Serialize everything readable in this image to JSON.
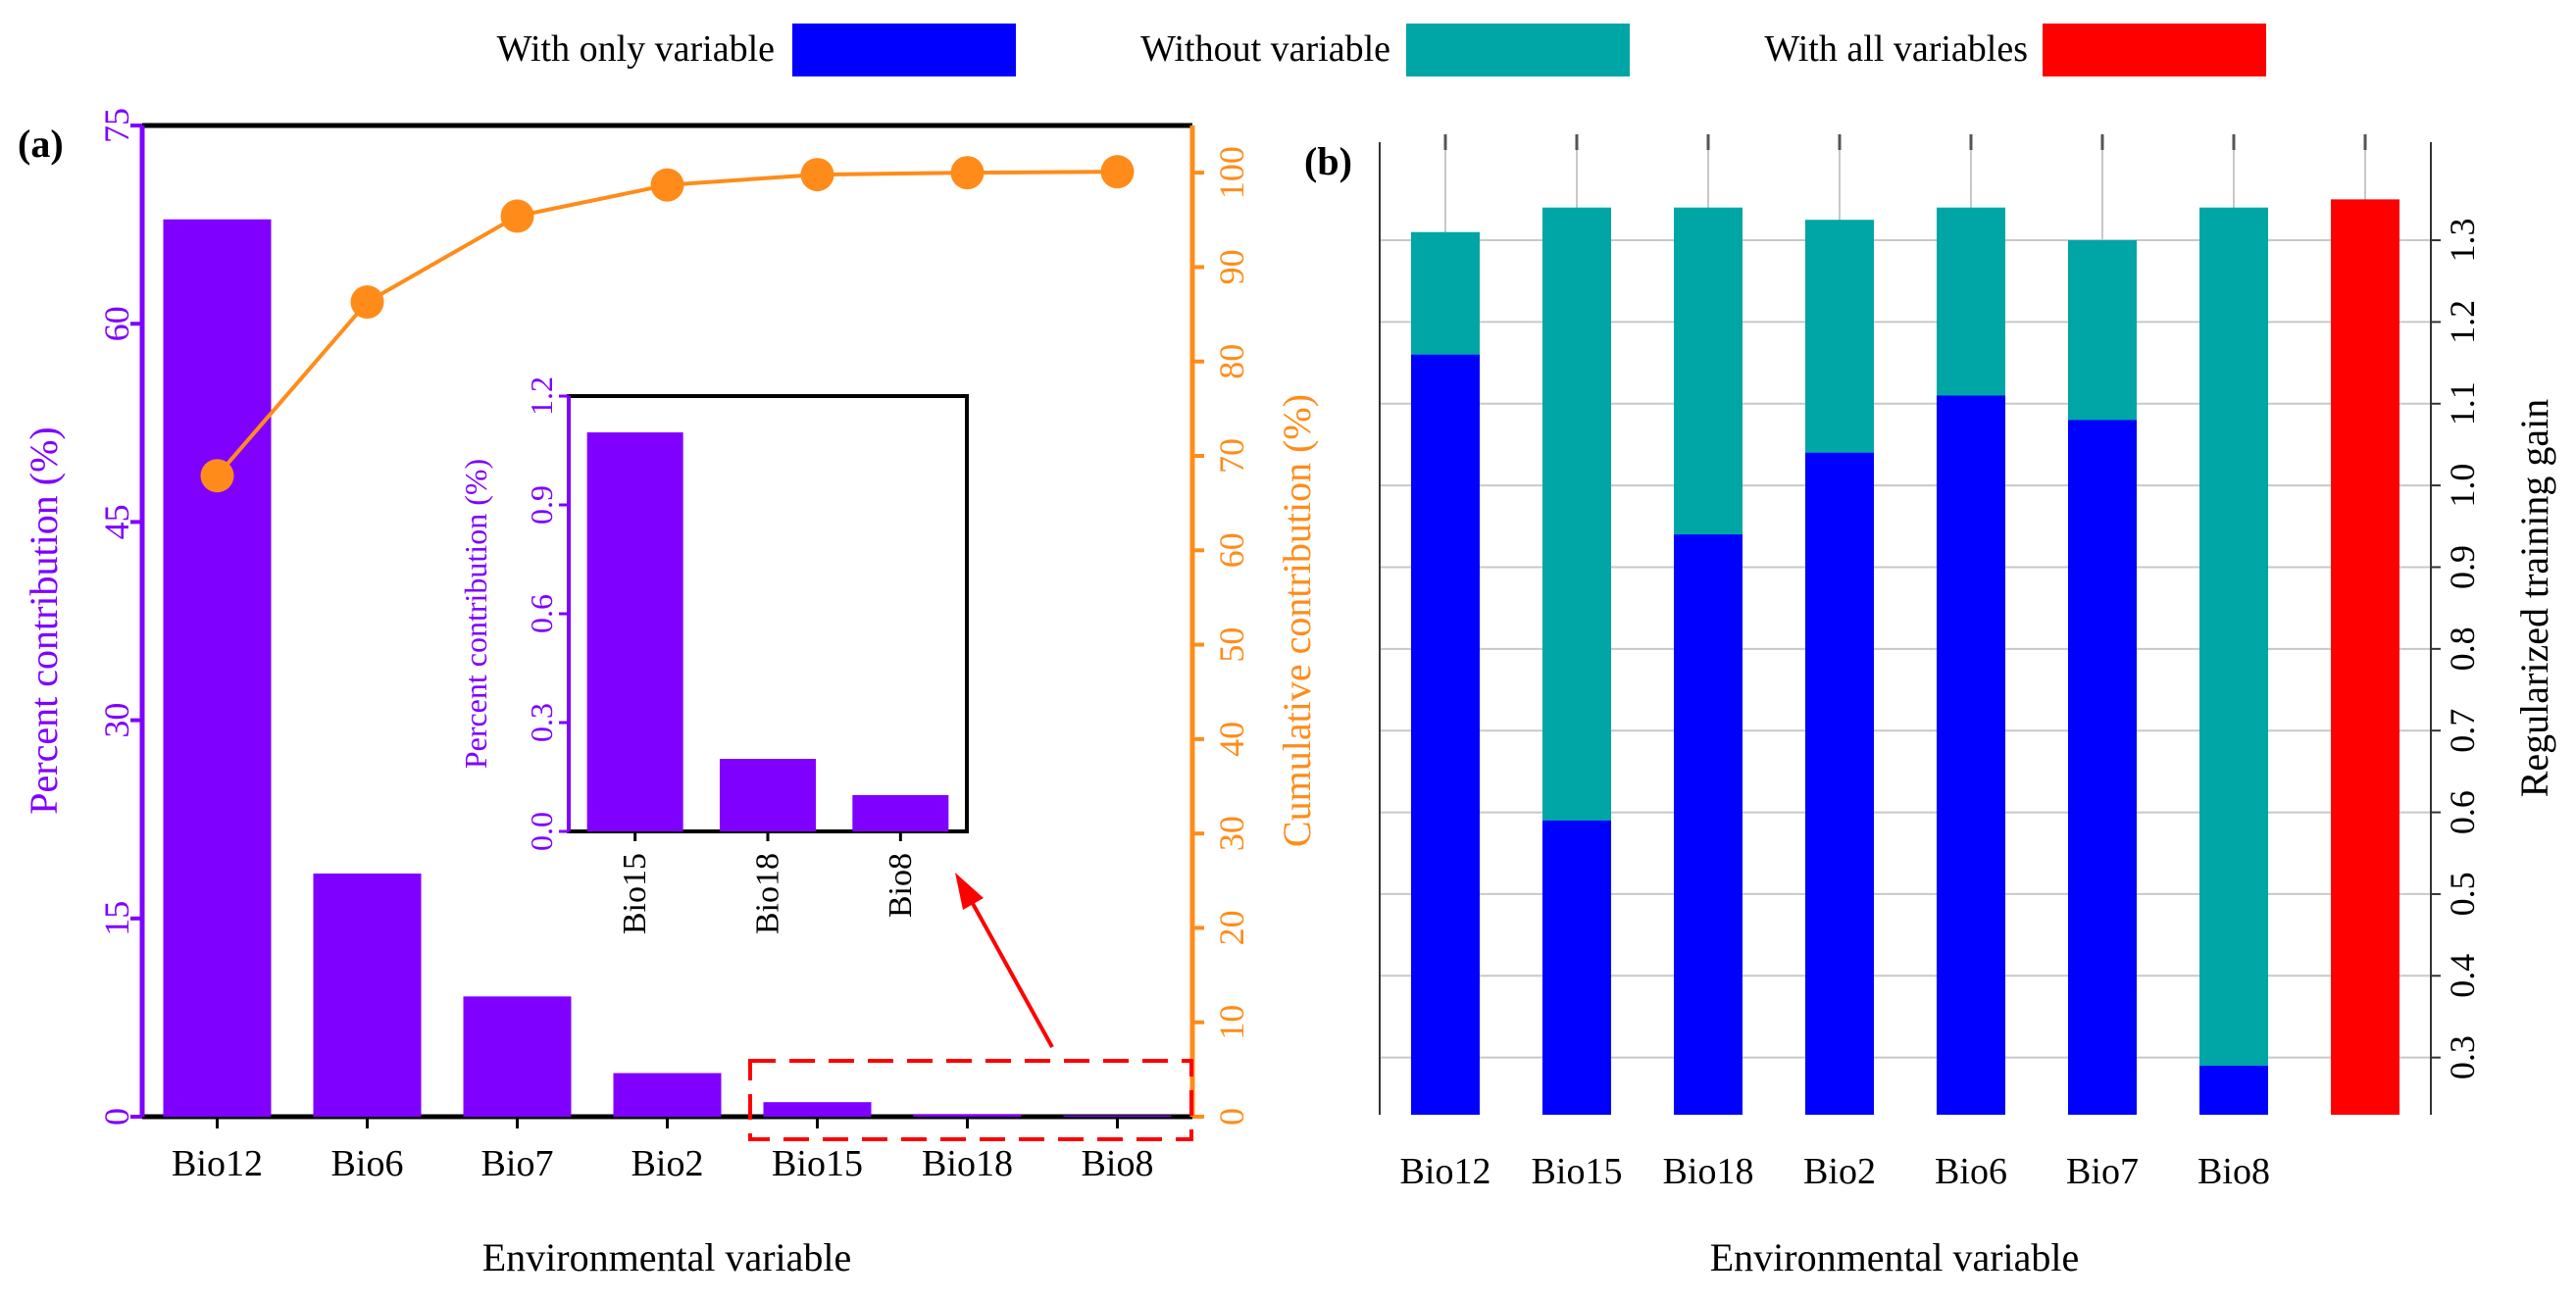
{
  "legend": {
    "items": [
      {
        "label": "With only variable",
        "color": "#0000ff"
      },
      {
        "label": "Without variable",
        "color": "#00a6a6"
      },
      {
        "label": "With all variables",
        "color": "#ff0000"
      }
    ]
  },
  "colors": {
    "bar_purple": "#8000ff",
    "cumulative_orange": "#ff8c1a",
    "only_blue": "#0000ff",
    "without_teal": "#00a6a6",
    "all_red": "#ff0000",
    "callout_red": "#ff0000"
  },
  "chart_data": [
    {
      "panel": "(a)",
      "type": "bar",
      "categories": [
        "Bio12",
        "Bio6",
        "Bio7",
        "Bio2",
        "Bio15",
        "Bio18",
        "Bio8"
      ],
      "series": [
        {
          "name": "Percent contribution (%)",
          "type": "bar",
          "axis": "left",
          "values": [
            67.9,
            18.4,
            9.1,
            3.3,
            1.1,
            0.2,
            0.1
          ]
        },
        {
          "name": "Cumulative contribution (%)",
          "type": "line",
          "axis": "right",
          "values": [
            67.9,
            86.3,
            95.4,
            98.7,
            99.8,
            100.0,
            100.1
          ]
        }
      ],
      "xlabel": "Environmental variable",
      "ylabel": "Percent contribution (%)",
      "ylabel_right": "Cumulative contribution (%)",
      "ylim": [
        0,
        75
      ],
      "ylim_right": [
        0,
        105
      ],
      "yticks": [
        0,
        15,
        30,
        45,
        60,
        75
      ],
      "yticks_right": [
        0,
        10,
        20,
        30,
        40,
        50,
        60,
        70,
        80,
        90,
        100
      ],
      "inset": {
        "type": "bar",
        "categories": [
          "Bio15",
          "Bio18",
          "Bio8"
        ],
        "values": [
          1.1,
          0.2,
          0.1
        ],
        "ylabel": "Percent contribution (%)",
        "ylim": [
          0,
          1.2
        ],
        "yticks": [
          "0.0",
          "0.3",
          "0.6",
          "0.9",
          "1.2"
        ]
      }
    },
    {
      "panel": "(b)",
      "type": "bar",
      "categories": [
        "Bio12",
        "Bio15",
        "Bio18",
        "Bio2",
        "Bio6",
        "Bio7",
        "Bio8",
        ""
      ],
      "series": [
        {
          "name": "Without variable",
          "values": [
            1.31,
            1.34,
            1.34,
            1.325,
            1.34,
            1.3,
            1.34,
            null
          ]
        },
        {
          "name": "With only variable",
          "values": [
            1.16,
            0.59,
            0.94,
            1.04,
            1.11,
            1.08,
            0.29,
            null
          ]
        },
        {
          "name": "With all variables",
          "values": [
            null,
            null,
            null,
            null,
            null,
            null,
            null,
            1.35
          ]
        }
      ],
      "xlabel": "Environmental variable",
      "ylabel": "Regularized training gain",
      "ylim": [
        0.23,
        1.42
      ],
      "yticks": [
        "0.3",
        "0.4",
        "0.5",
        "0.6",
        "0.7",
        "0.8",
        "0.9",
        "1.0",
        "1.1",
        "1.2",
        "1.3"
      ]
    }
  ]
}
